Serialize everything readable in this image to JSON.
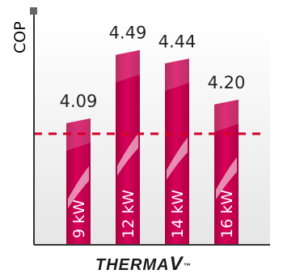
{
  "chart_data": {
    "type": "bar",
    "categories": [
      "9 kW",
      "12 kW",
      "14 kW",
      "16 kW"
    ],
    "values": [
      4.09,
      4.49,
      4.44,
      4.2
    ],
    "value_labels": [
      "4.09",
      "4.49",
      "4.44",
      "4.20"
    ],
    "ylabel": "COP",
    "ylim": [
      3.35,
      4.65
    ],
    "reference_line": {
      "value": 4.0,
      "style": "dashed",
      "color": "#d6002a"
    },
    "grid": false,
    "legend": "none",
    "colors": {
      "bar": "#c8004f",
      "bar_highlight": "#f6a6c6",
      "axis": "#333333",
      "plot_bg_top": "#ffffff",
      "plot_bg_bottom": "#ebebeb"
    }
  },
  "brand": {
    "text": "THERMA",
    "suffix": "V",
    "tm": "™"
  }
}
